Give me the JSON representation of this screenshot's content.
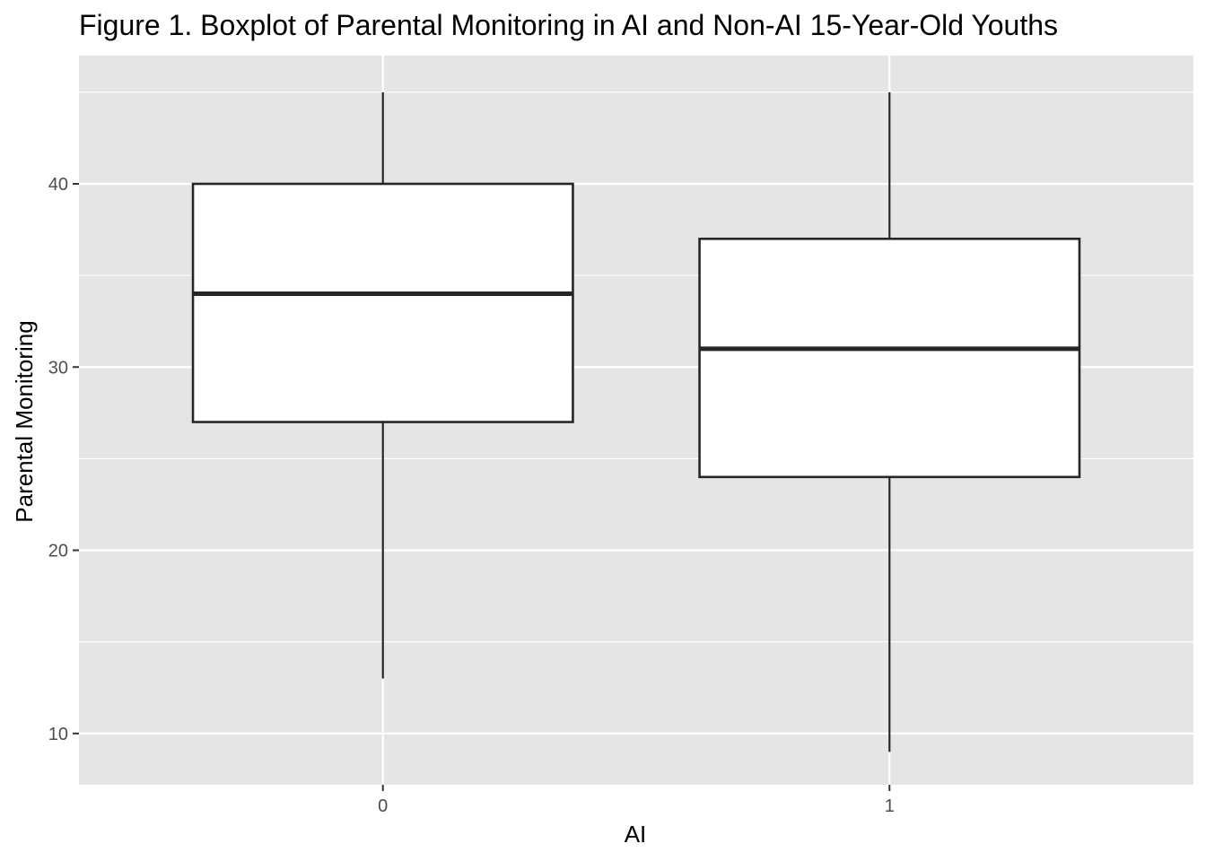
{
  "chart_data": {
    "type": "boxplot",
    "title": "Figure 1. Boxplot of Parental Monitoring in AI and Non-AI 15-Year-Old Youths",
    "xlabel": "AI",
    "ylabel": "Parental Monitoring",
    "categories": [
      "0",
      "1"
    ],
    "boxes": [
      {
        "category": "0",
        "whisker_low": 13,
        "q1": 27,
        "median": 34,
        "q3": 40,
        "whisker_high": 45
      },
      {
        "category": "1",
        "whisker_low": 9,
        "q1": 24,
        "median": 31,
        "q3": 37,
        "whisker_high": 45
      }
    ],
    "yticks": [
      10,
      20,
      30,
      40
    ],
    "ylim": [
      7.2,
      47
    ],
    "grid": true,
    "colors": {
      "panel_background": "#e5e5e5",
      "grid": "#ffffff",
      "box_fill": "#ffffff",
      "box_stroke": "#262626",
      "tick": "#333333"
    }
  }
}
